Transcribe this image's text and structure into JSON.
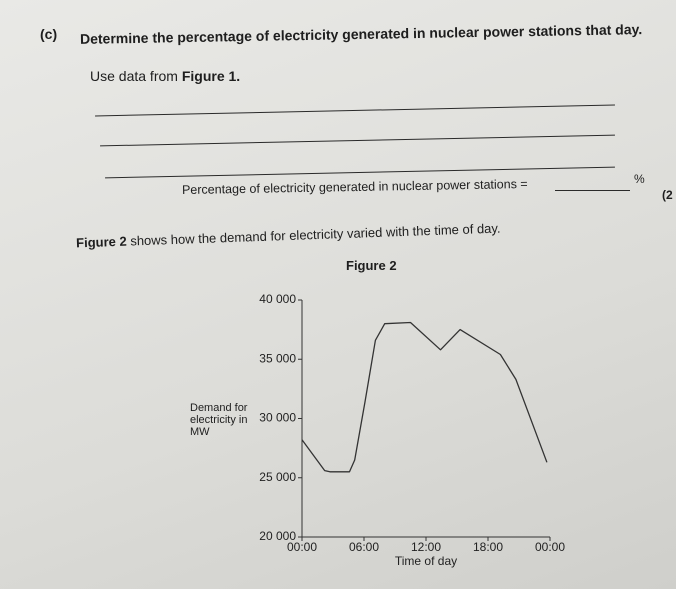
{
  "question": {
    "label": "(c)",
    "text": "Determine the percentage of electricity generated in nuclear power stations that day.",
    "instruction_prefix": "Use data from",
    "instruction_ref": "Figure 1.",
    "answer_label": "Percentage of electricity generated in nuclear power stations =",
    "answer_unit": "%",
    "marks": "(2"
  },
  "figure_intro": {
    "ref": "Figure 2",
    "text": "shows how the demand for electricity varied with the time of day."
  },
  "chart_data": {
    "type": "line",
    "title": "Figure 2",
    "ylabel": "Demand for electricity in MW",
    "xlabel": "Time of day",
    "color": "#333333",
    "x": [
      0,
      2.2,
      2.7,
      4.6,
      5.1,
      6.1,
      7.1,
      8,
      10.5,
      13.4,
      15.3,
      19.2,
      20.7,
      23.7
    ],
    "values": [
      28200,
      25600,
      25500,
      25500,
      26500,
      31400,
      36600,
      38000,
      38100,
      35800,
      37500,
      35400,
      33300,
      26300
    ],
    "xlim": [
      0,
      24
    ],
    "xticks": [
      {
        "value": 0,
        "label": "00:00"
      },
      {
        "value": 6,
        "label": "06:00"
      },
      {
        "value": 12,
        "label": "12:00"
      },
      {
        "value": 18,
        "label": "18:00"
      },
      {
        "value": 24,
        "label": "00:00"
      }
    ],
    "ylim": [
      20000,
      40000
    ],
    "yticks": [
      {
        "value": 20000,
        "label": "20 000"
      },
      {
        "value": 25000,
        "label": "25 000"
      },
      {
        "value": 30000,
        "label": "30 000"
      },
      {
        "value": 35000,
        "label": "35 000"
      },
      {
        "value": 40000,
        "label": "40 000"
      }
    ]
  }
}
